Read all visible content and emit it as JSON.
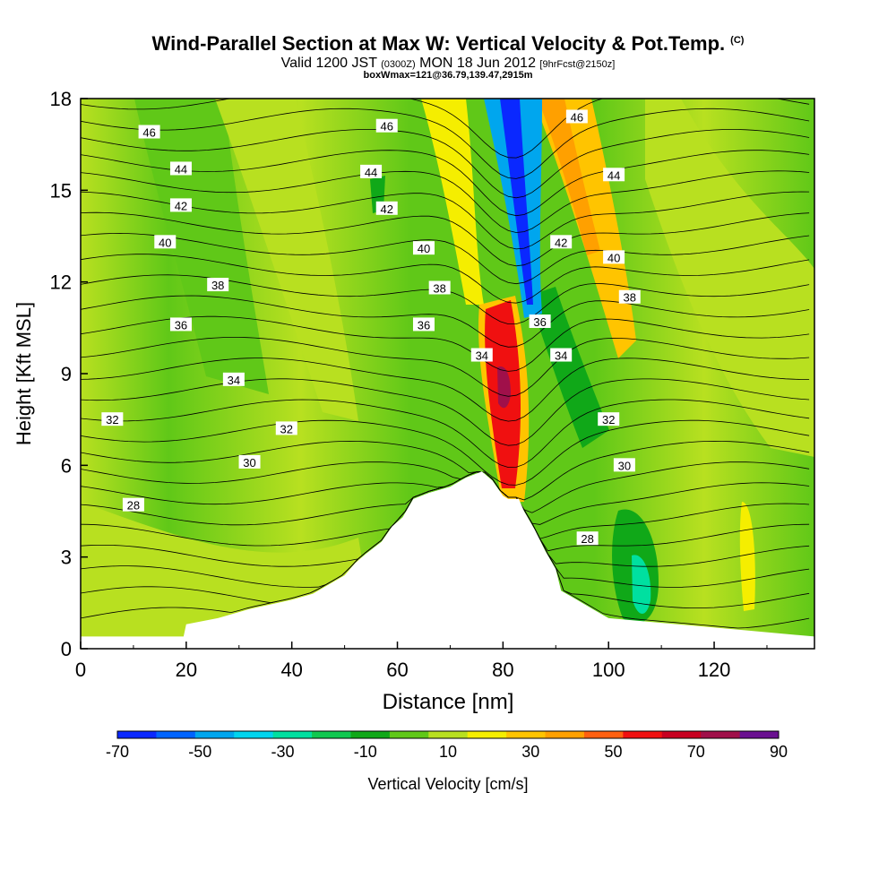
{
  "chart_data": {
    "type": "heatmap",
    "title": "Wind-Parallel Section at Max W: Vertical Velocity & Pot.Temp.",
    "copyright_mark": "(C)",
    "subtitle": {
      "valid": "Valid 1200 JST",
      "utc": "(0300Z)",
      "date": "MON 18 Jun 2012",
      "forecast": "[9hrFcst@2150z]"
    },
    "subtitle2": "boxWmax=121@36.79,139.47,2915m",
    "xlabel": "Distance [nm]",
    "ylabel": "Height [Kft MSL]",
    "xlim": [
      0,
      139
    ],
    "ylim": [
      0,
      18
    ],
    "x_ticks": [
      0,
      20,
      40,
      60,
      80,
      100,
      120
    ],
    "y_ticks": [
      0,
      3,
      6,
      9,
      12,
      15,
      18
    ],
    "colorbar": {
      "label": "Vertical Velocity [cm/s]",
      "tick_labels": [
        "-70",
        "-50",
        "-30",
        "-10",
        "10",
        "30",
        "50",
        "70",
        "90"
      ],
      "boundaries": [
        -70,
        -60,
        -50,
        -40,
        -30,
        -20,
        -10,
        0,
        10,
        20,
        30,
        40,
        50,
        60,
        70,
        80,
        90
      ],
      "colors": [
        "#0a28ff",
        "#0064ff",
        "#00a6ee",
        "#00d4ee",
        "#00e0a0",
        "#10c850",
        "#10a818",
        "#60c818",
        "#b8e020",
        "#f5ee00",
        "#ffc400",
        "#ffa000",
        "#ff6010",
        "#f01010",
        "#c80020",
        "#a0104a",
        "#6a1090"
      ]
    },
    "terrain_profile": {
      "x": [
        0,
        19.5,
        20,
        26,
        32,
        40,
        44,
        47,
        50,
        52,
        54,
        57,
        59,
        61,
        63,
        66,
        70,
        73,
        76,
        78,
        80,
        81,
        83,
        84,
        86,
        88,
        90,
        91,
        94,
        97,
        100,
        126,
        139
      ],
      "height": [
        0.4,
        0.4,
        0.8,
        1.0,
        1.3,
        1.6,
        1.8,
        2.1,
        2.4,
        2.8,
        3.1,
        3.5,
        4.0,
        4.3,
        4.9,
        5.1,
        5.3,
        5.6,
        5.8,
        5.5,
        5.0,
        4.9,
        4.9,
        4.5,
        3.9,
        3.2,
        2.6,
        1.9,
        1.6,
        1.3,
        1.0,
        0.6,
        0.4
      ]
    },
    "theta_contour_labels": [
      {
        "text": "46",
        "x": 13,
        "y": 16.9
      },
      {
        "text": "44",
        "x": 19,
        "y": 15.7
      },
      {
        "text": "42",
        "x": 19,
        "y": 14.5
      },
      {
        "text": "40",
        "x": 16,
        "y": 13.3
      },
      {
        "text": "38",
        "x": 26,
        "y": 11.9
      },
      {
        "text": "36",
        "x": 19,
        "y": 10.6
      },
      {
        "text": "34",
        "x": 29,
        "y": 8.8
      },
      {
        "text": "32",
        "x": 6,
        "y": 7.5
      },
      {
        "text": "32",
        "x": 39,
        "y": 7.2
      },
      {
        "text": "30",
        "x": 32,
        "y": 6.1
      },
      {
        "text": "28",
        "x": 10,
        "y": 4.7
      },
      {
        "text": "46",
        "x": 58,
        "y": 17.1
      },
      {
        "text": "44",
        "x": 55,
        "y": 15.6
      },
      {
        "text": "42",
        "x": 58,
        "y": 14.4
      },
      {
        "text": "40",
        "x": 65,
        "y": 13.1
      },
      {
        "text": "38",
        "x": 68,
        "y": 11.8
      },
      {
        "text": "36",
        "x": 65,
        "y": 10.6
      },
      {
        "text": "34",
        "x": 76,
        "y": 9.6
      },
      {
        "text": "46",
        "x": 94,
        "y": 17.4
      },
      {
        "text": "44",
        "x": 101,
        "y": 15.5
      },
      {
        "text": "42",
        "x": 91,
        "y": 13.3
      },
      {
        "text": "40",
        "x": 101,
        "y": 12.8
      },
      {
        "text": "38",
        "x": 104,
        "y": 11.5
      },
      {
        "text": "36",
        "x": 87,
        "y": 10.7
      },
      {
        "text": "34",
        "x": 91,
        "y": 9.6
      },
      {
        "text": "32",
        "x": 100,
        "y": 7.5
      },
      {
        "text": "30",
        "x": 103,
        "y": 6.0
      },
      {
        "text": "28",
        "x": 96,
        "y": 3.6
      }
    ]
  }
}
